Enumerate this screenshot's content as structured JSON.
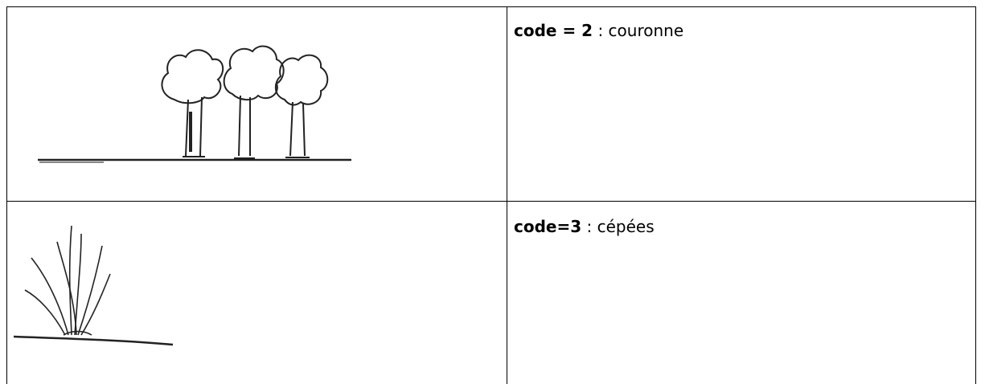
{
  "table": {
    "rows": [
      {
        "code": "code = 2",
        "text": ": couronne"
      },
      {
        "code": "code=3",
        "text": ": cépées"
      }
    ]
  }
}
